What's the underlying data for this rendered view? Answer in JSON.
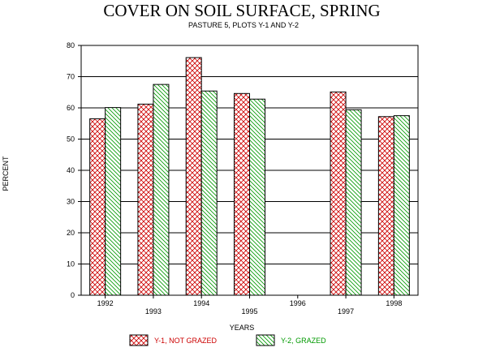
{
  "chart_data": {
    "type": "bar",
    "title": "COVER ON SOIL SURFACE, SPRING",
    "subtitle": "PASTURE 5, PLOTS Y-1 AND Y-2",
    "xlabel": "YEARS",
    "ylabel": "PERCENT",
    "ylim": [
      0,
      80
    ],
    "yticks": [
      0,
      10,
      20,
      30,
      40,
      50,
      60,
      70,
      80
    ],
    "grid": true,
    "categories": [
      "1992",
      "1993",
      "1994",
      "1995",
      "1996",
      "1997",
      "1998"
    ],
    "series": [
      {
        "name": "Y-1, NOT GRAZED",
        "values": [
          56.5,
          61.2,
          76.1,
          64.6,
          null,
          65.1,
          57.2
        ]
      },
      {
        "name": "Y-2, GRAZED",
        "values": [
          60.1,
          67.5,
          65.4,
          62.8,
          null,
          59.4,
          57.5
        ]
      }
    ],
    "legend_placement": "bottom"
  },
  "colors": {
    "series1": "#cc0000",
    "series2": "#009900",
    "axis": "#000000"
  }
}
